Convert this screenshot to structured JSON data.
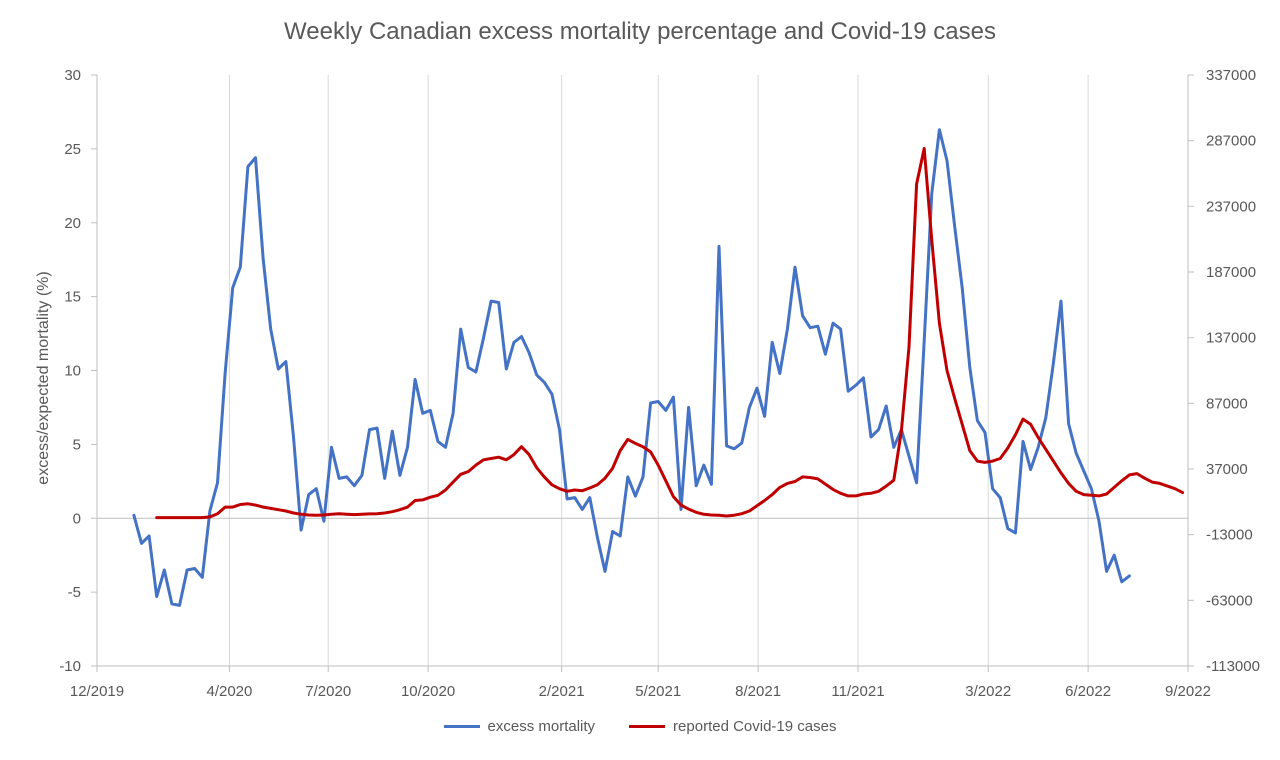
{
  "chart_data": {
    "type": "line",
    "title": "Weekly Canadian excess mortality percentage and Covid-19 cases",
    "ylabel": "excess/expected mortality (%)",
    "y2label": "",
    "xlim": [
      "2019-12-01",
      "2022-09-01"
    ],
    "ylim": [
      -10,
      30
    ],
    "y2lim": [
      -113000,
      337000
    ],
    "x_ticks": [
      {
        "date": "2019-12-01",
        "label": "12/2019"
      },
      {
        "date": "2020-04-01",
        "label": "4/2020"
      },
      {
        "date": "2020-07-01",
        "label": "7/2020"
      },
      {
        "date": "2020-10-01",
        "label": "10/2020"
      },
      {
        "date": "2021-02-01",
        "label": "2/2021"
      },
      {
        "date": "2021-05-01",
        "label": "5/2021"
      },
      {
        "date": "2021-08-01",
        "label": "8/2021"
      },
      {
        "date": "2021-11-01",
        "label": "11/2021"
      },
      {
        "date": "2022-03-01",
        "label": "3/2022"
      },
      {
        "date": "2022-06-01",
        "label": "6/2022"
      },
      {
        "date": "2022-09-01",
        "label": "9/2022"
      }
    ],
    "y_ticks": [
      -10,
      -5,
      0,
      5,
      10,
      15,
      20,
      25,
      30
    ],
    "y2_ticks": [
      -113000,
      -63000,
      -13000,
      37000,
      87000,
      137000,
      187000,
      237000,
      287000,
      337000
    ],
    "grid": "vertical",
    "legend_position": "bottom",
    "series": [
      {
        "name": "excess mortality",
        "color": "#4472C4",
        "axis": "left",
        "points": [
          [
            "2020-01-04",
            0.2
          ],
          [
            "2020-01-11",
            -1.7
          ],
          [
            "2020-01-18",
            -1.2
          ],
          [
            "2020-01-25",
            -5.3
          ],
          [
            "2020-02-01",
            -3.5
          ],
          [
            "2020-02-08",
            -5.8
          ],
          [
            "2020-02-15",
            -5.9
          ],
          [
            "2020-02-22",
            -3.5
          ],
          [
            "2020-02-29",
            -3.4
          ],
          [
            "2020-03-07",
            -4.0
          ],
          [
            "2020-03-14",
            0.5
          ],
          [
            "2020-03-21",
            2.4
          ],
          [
            "2020-03-28",
            9.8
          ],
          [
            "2020-04-04",
            15.6
          ],
          [
            "2020-04-11",
            17.0
          ],
          [
            "2020-04-18",
            23.8
          ],
          [
            "2020-04-25",
            24.4
          ],
          [
            "2020-05-02",
            17.6
          ],
          [
            "2020-05-09",
            12.8
          ],
          [
            "2020-05-16",
            10.1
          ],
          [
            "2020-05-23",
            10.6
          ],
          [
            "2020-05-30",
            5.5
          ],
          [
            "2020-06-06",
            -0.8
          ],
          [
            "2020-06-13",
            1.6
          ],
          [
            "2020-06-20",
            2.0
          ],
          [
            "2020-06-27",
            -0.2
          ],
          [
            "2020-07-04",
            4.8
          ],
          [
            "2020-07-11",
            2.7
          ],
          [
            "2020-07-18",
            2.8
          ],
          [
            "2020-07-25",
            2.2
          ],
          [
            "2020-08-01",
            2.9
          ],
          [
            "2020-08-08",
            6.0
          ],
          [
            "2020-08-15",
            6.1
          ],
          [
            "2020-08-22",
            2.7
          ],
          [
            "2020-08-29",
            5.9
          ],
          [
            "2020-09-05",
            2.9
          ],
          [
            "2020-09-12",
            4.8
          ],
          [
            "2020-09-19",
            9.4
          ],
          [
            "2020-09-26",
            7.1
          ],
          [
            "2020-10-03",
            7.3
          ],
          [
            "2020-10-10",
            5.2
          ],
          [
            "2020-10-17",
            4.8
          ],
          [
            "2020-10-24",
            7.1
          ],
          [
            "2020-10-31",
            12.8
          ],
          [
            "2020-11-07",
            10.2
          ],
          [
            "2020-11-14",
            9.9
          ],
          [
            "2020-11-21",
            12.2
          ],
          [
            "2020-11-28",
            14.7
          ],
          [
            "2020-12-05",
            14.6
          ],
          [
            "2020-12-12",
            10.1
          ],
          [
            "2020-12-19",
            11.9
          ],
          [
            "2020-12-26",
            12.3
          ],
          [
            "2021-01-02",
            11.2
          ],
          [
            "2021-01-09",
            9.7
          ],
          [
            "2021-01-16",
            9.2
          ],
          [
            "2021-01-23",
            8.4
          ],
          [
            "2021-01-30",
            6.0
          ],
          [
            "2021-02-06",
            1.3
          ],
          [
            "2021-02-13",
            1.4
          ],
          [
            "2021-02-20",
            0.6
          ],
          [
            "2021-02-27",
            1.4
          ],
          [
            "2021-03-06",
            -1.3
          ],
          [
            "2021-03-13",
            -3.6
          ],
          [
            "2021-03-20",
            -0.9
          ],
          [
            "2021-03-27",
            -1.2
          ],
          [
            "2021-04-03",
            2.8
          ],
          [
            "2021-04-10",
            1.5
          ],
          [
            "2021-04-17",
            2.8
          ],
          [
            "2021-04-24",
            7.8
          ],
          [
            "2021-05-01",
            7.9
          ],
          [
            "2021-05-08",
            7.3
          ],
          [
            "2021-05-15",
            8.2
          ],
          [
            "2021-05-22",
            0.6
          ],
          [
            "2021-05-29",
            7.5
          ],
          [
            "2021-06-05",
            2.2
          ],
          [
            "2021-06-12",
            3.6
          ],
          [
            "2021-06-19",
            2.3
          ],
          [
            "2021-06-26",
            18.4
          ],
          [
            "2021-07-03",
            4.9
          ],
          [
            "2021-07-10",
            4.7
          ],
          [
            "2021-07-17",
            5.1
          ],
          [
            "2021-07-24",
            7.5
          ],
          [
            "2021-07-31",
            8.8
          ],
          [
            "2021-08-07",
            6.9
          ],
          [
            "2021-08-14",
            11.9
          ],
          [
            "2021-08-21",
            9.8
          ],
          [
            "2021-08-28",
            12.8
          ],
          [
            "2021-09-04",
            17.0
          ],
          [
            "2021-09-11",
            13.7
          ],
          [
            "2021-09-18",
            12.9
          ],
          [
            "2021-09-25",
            13.0
          ],
          [
            "2021-10-02",
            11.1
          ],
          [
            "2021-10-09",
            13.2
          ],
          [
            "2021-10-16",
            12.8
          ],
          [
            "2021-10-23",
            8.6
          ],
          [
            "2021-10-30",
            9.0
          ],
          [
            "2021-11-06",
            9.5
          ],
          [
            "2021-11-13",
            5.5
          ],
          [
            "2021-11-20",
            6.0
          ],
          [
            "2021-11-27",
            7.6
          ],
          [
            "2021-12-04",
            4.8
          ],
          [
            "2021-12-11",
            6.0
          ],
          [
            "2021-12-18",
            4.2
          ],
          [
            "2021-12-25",
            2.4
          ],
          [
            "2022-01-01",
            12.0
          ],
          [
            "2022-01-08",
            22.0
          ],
          [
            "2022-01-15",
            26.3
          ],
          [
            "2022-01-22",
            24.2
          ],
          [
            "2022-01-29",
            19.8
          ],
          [
            "2022-02-05",
            15.6
          ],
          [
            "2022-02-12",
            10.2
          ],
          [
            "2022-02-19",
            6.6
          ],
          [
            "2022-02-26",
            5.8
          ],
          [
            "2022-03-05",
            2.0
          ],
          [
            "2022-03-12",
            1.4
          ],
          [
            "2022-03-19",
            -0.7
          ],
          [
            "2022-03-26",
            -1.0
          ],
          [
            "2022-04-02",
            5.2
          ],
          [
            "2022-04-09",
            3.3
          ],
          [
            "2022-04-16",
            4.8
          ],
          [
            "2022-04-23",
            6.8
          ],
          [
            "2022-04-30",
            10.5
          ],
          [
            "2022-05-07",
            14.7
          ],
          [
            "2022-05-14",
            6.4
          ],
          [
            "2022-05-21",
            4.4
          ],
          [
            "2022-05-28",
            3.2
          ],
          [
            "2022-06-04",
            2.0
          ],
          [
            "2022-06-11",
            -0.2
          ],
          [
            "2022-06-18",
            -3.6
          ],
          [
            "2022-06-25",
            -2.5
          ],
          [
            "2022-07-02",
            -4.3
          ],
          [
            "2022-07-09",
            -3.9
          ]
        ]
      },
      {
        "name": "reported Covid-19 cases",
        "color": "#C00000",
        "axis": "right",
        "points": [
          [
            "2020-01-25",
            0
          ],
          [
            "2020-02-08",
            0
          ],
          [
            "2020-02-22",
            0
          ],
          [
            "2020-03-07",
            0
          ],
          [
            "2020-03-14",
            500
          ],
          [
            "2020-03-21",
            3000
          ],
          [
            "2020-03-28",
            8000
          ],
          [
            "2020-04-04",
            8000
          ],
          [
            "2020-04-11",
            10000
          ],
          [
            "2020-04-18",
            10500
          ],
          [
            "2020-04-25",
            9500
          ],
          [
            "2020-05-02",
            8000
          ],
          [
            "2020-05-09",
            7000
          ],
          [
            "2020-05-16",
            6000
          ],
          [
            "2020-05-23",
            5000
          ],
          [
            "2020-05-30",
            3500
          ],
          [
            "2020-06-06",
            2500
          ],
          [
            "2020-06-13",
            2000
          ],
          [
            "2020-06-20",
            1800
          ],
          [
            "2020-06-27",
            2000
          ],
          [
            "2020-07-04",
            2500
          ],
          [
            "2020-07-11",
            3000
          ],
          [
            "2020-07-18",
            2600
          ],
          [
            "2020-07-25",
            2300
          ],
          [
            "2020-08-01",
            2500
          ],
          [
            "2020-08-08",
            2800
          ],
          [
            "2020-08-15",
            3000
          ],
          [
            "2020-08-22",
            3500
          ],
          [
            "2020-08-29",
            4500
          ],
          [
            "2020-09-05",
            6000
          ],
          [
            "2020-09-12",
            8000
          ],
          [
            "2020-09-19",
            13000
          ],
          [
            "2020-09-26",
            13500
          ],
          [
            "2020-10-03",
            15500
          ],
          [
            "2020-10-10",
            17000
          ],
          [
            "2020-10-17",
            21000
          ],
          [
            "2020-10-24",
            27000
          ],
          [
            "2020-10-31",
            33000
          ],
          [
            "2020-11-07",
            35000
          ],
          [
            "2020-11-14",
            40000
          ],
          [
            "2020-11-21",
            44000
          ],
          [
            "2020-11-28",
            45000
          ],
          [
            "2020-12-05",
            46000
          ],
          [
            "2020-12-12",
            44000
          ],
          [
            "2020-12-19",
            48000
          ],
          [
            "2020-12-26",
            54000
          ],
          [
            "2021-01-02",
            48000
          ],
          [
            "2021-01-09",
            38000
          ],
          [
            "2021-01-16",
            31000
          ],
          [
            "2021-01-23",
            25000
          ],
          [
            "2021-01-30",
            22000
          ],
          [
            "2021-02-06",
            20000
          ],
          [
            "2021-02-13",
            21000
          ],
          [
            "2021-02-20",
            20500
          ],
          [
            "2021-02-27",
            22500
          ],
          [
            "2021-03-06",
            25000
          ],
          [
            "2021-03-13",
            30000
          ],
          [
            "2021-03-20",
            37500
          ],
          [
            "2021-03-27",
            51000
          ],
          [
            "2021-04-03",
            59500
          ],
          [
            "2021-04-10",
            56500
          ],
          [
            "2021-04-17",
            54000
          ],
          [
            "2021-04-24",
            50000
          ],
          [
            "2021-05-01",
            40000
          ],
          [
            "2021-05-08",
            28000
          ],
          [
            "2021-05-15",
            16000
          ],
          [
            "2021-05-22",
            9500
          ],
          [
            "2021-05-29",
            6500
          ],
          [
            "2021-06-05",
            4000
          ],
          [
            "2021-06-12",
            2500
          ],
          [
            "2021-06-19",
            2000
          ],
          [
            "2021-06-26",
            1800
          ],
          [
            "2021-07-03",
            1200
          ],
          [
            "2021-07-10",
            1800
          ],
          [
            "2021-07-17",
            3000
          ],
          [
            "2021-07-24",
            5000
          ],
          [
            "2021-07-31",
            9000
          ],
          [
            "2021-08-07",
            13000
          ],
          [
            "2021-08-14",
            17500
          ],
          [
            "2021-08-21",
            23000
          ],
          [
            "2021-08-28",
            26000
          ],
          [
            "2021-09-04",
            27500
          ],
          [
            "2021-09-11",
            31000
          ],
          [
            "2021-09-18",
            30500
          ],
          [
            "2021-09-25",
            29500
          ],
          [
            "2021-10-02",
            25500
          ],
          [
            "2021-10-09",
            21500
          ],
          [
            "2021-10-16",
            18500
          ],
          [
            "2021-10-23",
            16500
          ],
          [
            "2021-10-30",
            16500
          ],
          [
            "2021-11-06",
            18000
          ],
          [
            "2021-11-13",
            18500
          ],
          [
            "2021-11-20",
            20000
          ],
          [
            "2021-11-27",
            24000
          ],
          [
            "2021-12-04",
            28500
          ],
          [
            "2021-12-11",
            66000
          ],
          [
            "2021-12-18",
            130000
          ],
          [
            "2021-12-25",
            254000
          ],
          [
            "2022-01-01",
            281000
          ],
          [
            "2022-01-08",
            211000
          ],
          [
            "2022-01-15",
            148000
          ],
          [
            "2022-01-22",
            112000
          ],
          [
            "2022-01-29",
            91000
          ],
          [
            "2022-02-05",
            71000
          ],
          [
            "2022-02-12",
            51000
          ],
          [
            "2022-02-19",
            43000
          ],
          [
            "2022-02-26",
            42000
          ],
          [
            "2022-03-05",
            43000
          ],
          [
            "2022-03-12",
            45000
          ],
          [
            "2022-03-19",
            53000
          ],
          [
            "2022-03-26",
            63000
          ],
          [
            "2022-04-02",
            75000
          ],
          [
            "2022-04-09",
            71000
          ],
          [
            "2022-04-16",
            61000
          ],
          [
            "2022-04-23",
            52000
          ],
          [
            "2022-04-30",
            43000
          ],
          [
            "2022-05-07",
            34000
          ],
          [
            "2022-05-14",
            26000
          ],
          [
            "2022-05-21",
            20000
          ],
          [
            "2022-05-28",
            17500
          ],
          [
            "2022-06-04",
            17000
          ],
          [
            "2022-06-11",
            16500
          ],
          [
            "2022-06-18",
            18000
          ],
          [
            "2022-06-25",
            23000
          ],
          [
            "2022-07-02",
            28000
          ],
          [
            "2022-07-09",
            32500
          ],
          [
            "2022-07-16",
            33500
          ],
          [
            "2022-07-23",
            30000
          ],
          [
            "2022-07-30",
            27000
          ],
          [
            "2022-08-06",
            26000
          ],
          [
            "2022-08-13",
            24000
          ],
          [
            "2022-08-20",
            22000
          ],
          [
            "2022-08-27",
            19000
          ]
        ]
      }
    ]
  }
}
